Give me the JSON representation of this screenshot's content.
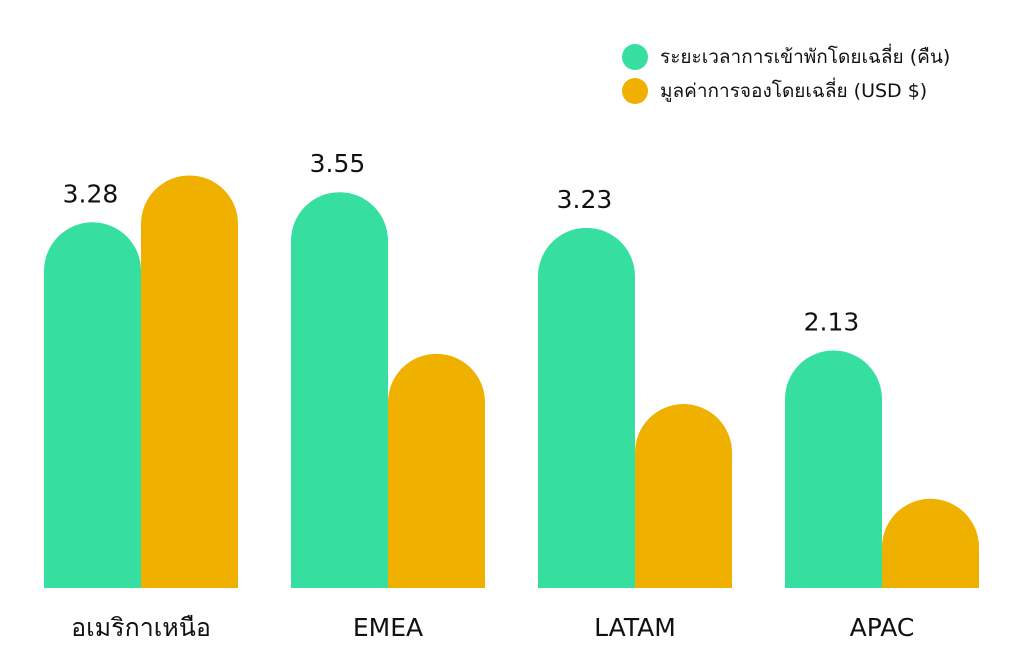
{
  "chart_data": {
    "type": "bar",
    "categories": [
      "อเมริกาเหนือ",
      "EMEA",
      "LATAM",
      "APAC"
    ],
    "series": [
      {
        "name": "ระยะเวลาการเข้าพักโดยเฉลี่ย (คืน)",
        "values": [
          3.28,
          3.55,
          3.23,
          2.13
        ],
        "labels": [
          "3.28",
          "3.55",
          "3.23",
          "2.13"
        ],
        "color": "#36dfa0"
      },
      {
        "name": "มูลค่าการจองโดยเฉลี่ย (USD $)",
        "values": [
          3.7,
          2.1,
          1.65,
          0.8
        ],
        "color": "#f0b000"
      }
    ],
    "ylim": [
      0,
      4
    ],
    "grid": false,
    "legend_position": "top-right",
    "bar_shape": "rounded-top"
  }
}
